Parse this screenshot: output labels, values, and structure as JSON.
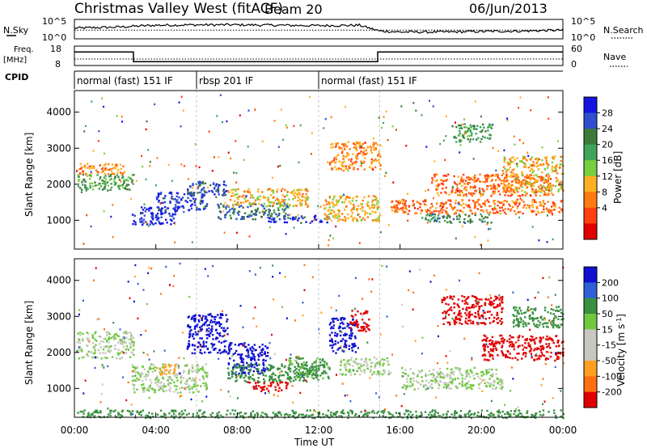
{
  "header": {
    "station": "Christmas Valley West (fitACF)",
    "beam": "Beam 20",
    "date": "06/Jun/2013"
  },
  "nsky_panel": {
    "left_label": "N.Sky",
    "right_label": "N.Search",
    "ticks_left": [
      "10^5",
      "10^0"
    ],
    "ticks_right": [
      "10^5",
      "10^0"
    ]
  },
  "freq_panel": {
    "left_label_1": "Freq.",
    "left_label_2": "[MHz]",
    "right_label": "Nave",
    "ticks_left": [
      "18",
      "8"
    ],
    "ticks_right": [
      "60",
      "0"
    ]
  },
  "cpid": {
    "label": "CPID",
    "segments": [
      {
        "name": "normal (fast) 151 IF",
        "start_h": 0,
        "end_h": 6
      },
      {
        "name": "rbsp 201 IF",
        "start_h": 6,
        "end_h": 12
      },
      {
        "name": "normal (fast) 151 IF",
        "start_h": 12,
        "end_h": 24
      }
    ]
  },
  "power_panel": {
    "ylabel": "Slant Range [km]",
    "yticks": [
      "4000",
      "3000",
      "2000",
      "1000"
    ],
    "cbar_label": "Power [dB]",
    "cbar_ticks": [
      "28",
      "24",
      "20",
      "16",
      "12",
      "8",
      "4"
    ]
  },
  "velocity_panel": {
    "ylabel": "Slant Range [km]",
    "yticks": [
      "4000",
      "3000",
      "2000",
      "1000"
    ],
    "cbar_label": "Velocity [m s",
    "cbar_label_sup": "-1",
    "cbar_label_end": "]",
    "cbar_ticks": [
      "200",
      "100",
      "50",
      "15",
      "-15",
      "-50",
      "-100",
      "-200"
    ]
  },
  "xaxis": {
    "label": "Time UT",
    "ticks": [
      "00:00",
      "04:00",
      "08:00",
      "12:00",
      "16:00",
      "20:00",
      "00:00"
    ]
  },
  "colors": {
    "power_scale": [
      "#1515e0",
      "#2f4ed0",
      "#3d7a3a",
      "#3fa35a",
      "#78d040",
      "#ffb020",
      "#ff7a10",
      "#ff4010",
      "#e00000"
    ],
    "velocity_scale": [
      "#1010d0",
      "#3060d8",
      "#3a9040",
      "#70c840",
      "#c8c8c0",
      "#c8c8c0",
      "#ffa020",
      "#ff7010",
      "#e00000"
    ]
  },
  "chart_data": [
    {
      "type": "line",
      "title": "N.Sky / N.Search",
      "x_range_h": [
        0,
        24
      ],
      "series": [
        {
          "name": "N.Sky",
          "style": "solid",
          "x": [
            0,
            2,
            4,
            6,
            8,
            10,
            12,
            14,
            15,
            16,
            18,
            20,
            22,
            24
          ],
          "level": [
            0.55,
            0.6,
            0.7,
            0.72,
            0.72,
            0.7,
            0.68,
            0.7,
            0.4,
            0.35,
            0.35,
            0.38,
            0.4,
            0.45
          ]
        },
        {
          "name": "N.Search",
          "style": "dotted",
          "x": [
            0,
            24
          ],
          "level": [
            0.45,
            0.45
          ]
        }
      ]
    },
    {
      "type": "line",
      "title": "Freq / Nave",
      "x_range_h": [
        0,
        24
      ],
      "series": [
        {
          "name": "Freq. [MHz]",
          "style": "solid",
          "x": [
            0,
            2.9,
            2.9,
            14.9,
            14.9,
            24
          ],
          "y": [
            15,
            15,
            10,
            10,
            15,
            15
          ]
        },
        {
          "name": "Nave",
          "style": "dotted",
          "x": [
            0,
            24
          ],
          "y": [
            20,
            20
          ]
        }
      ]
    },
    {
      "type": "heatmap",
      "title": "Power [dB]",
      "x_range_h": [
        0,
        24
      ],
      "ylim_km": [
        200,
        4600
      ],
      "regions": [
        {
          "x0": 0.1,
          "x1": 2.9,
          "y0": 1850,
          "y1": 2300,
          "value": 18
        },
        {
          "x0": 0.2,
          "x1": 2.6,
          "y0": 2300,
          "y1": 2600,
          "value": 8
        },
        {
          "x0": 2.8,
          "x1": 5.0,
          "y0": 900,
          "y1": 1400,
          "value": 28
        },
        {
          "x0": 4.0,
          "x1": 6.5,
          "y0": 1300,
          "y1": 1800,
          "value": 26
        },
        {
          "x0": 5.5,
          "x1": 7.5,
          "y0": 1700,
          "y1": 2100,
          "value": 24
        },
        {
          "x0": 7.0,
          "x1": 10.5,
          "y0": 1050,
          "y1": 1500,
          "value": 22
        },
        {
          "x0": 9.5,
          "x1": 12.5,
          "y0": 950,
          "y1": 1150,
          "value": 26
        },
        {
          "x0": 7.5,
          "x1": 11.5,
          "y0": 1400,
          "y1": 1900,
          "value": 10
        },
        {
          "x0": 12.2,
          "x1": 15.0,
          "y0": 1000,
          "y1": 1700,
          "value": 10
        },
        {
          "x0": 12.5,
          "x1": 15.0,
          "y0": 2400,
          "y1": 3200,
          "value": 8
        },
        {
          "x0": 17.0,
          "x1": 20.5,
          "y0": 950,
          "y1": 1200,
          "value": 20
        },
        {
          "x0": 15.5,
          "x1": 24.0,
          "y0": 1200,
          "y1": 1600,
          "value": 6
        },
        {
          "x0": 17.5,
          "x1": 23.5,
          "y0": 1700,
          "y1": 2300,
          "value": 6
        },
        {
          "x0": 18.5,
          "x1": 20.5,
          "y0": 3200,
          "y1": 3700,
          "value": 18
        },
        {
          "x0": 21.0,
          "x1": 24.0,
          "y0": 1800,
          "y1": 2800,
          "value": 10
        }
      ]
    },
    {
      "type": "heatmap",
      "title": "Velocity [m s-1]",
      "x_range_h": [
        0,
        24
      ],
      "ylim_km": [
        200,
        4600
      ],
      "regions": [
        {
          "x0": 0.1,
          "x1": 2.9,
          "y0": 1850,
          "y1": 2600,
          "value": 0
        },
        {
          "x0": 2.8,
          "x1": 6.5,
          "y0": 900,
          "y1": 1700,
          "value": 0
        },
        {
          "x0": 4.0,
          "x1": 5.0,
          "y0": 1400,
          "y1": 1700,
          "value": -60
        },
        {
          "x0": 5.5,
          "x1": 7.5,
          "y0": 2000,
          "y1": 3100,
          "value": 200
        },
        {
          "x0": 7.5,
          "x1": 9.5,
          "y0": 1400,
          "y1": 2300,
          "value": 200
        },
        {
          "x0": 7.5,
          "x1": 12.0,
          "y0": 1200,
          "y1": 1700,
          "value": 60
        },
        {
          "x0": 8.5,
          "x1": 10.5,
          "y0": 950,
          "y1": 1200,
          "value": -200
        },
        {
          "x0": 10.5,
          "x1": 12.5,
          "y0": 1300,
          "y1": 1900,
          "value": 40
        },
        {
          "x0": 12.5,
          "x1": 13.8,
          "y0": 2000,
          "y1": 3000,
          "value": 200
        },
        {
          "x0": 13.5,
          "x1": 14.5,
          "y0": 2600,
          "y1": 3200,
          "value": -200
        },
        {
          "x0": 13.0,
          "x1": 15.5,
          "y0": 1400,
          "y1": 1900,
          "value": 0
        },
        {
          "x0": 16.0,
          "x1": 21.0,
          "y0": 1000,
          "y1": 1600,
          "value": 0
        },
        {
          "x0": 18.0,
          "x1": 21.0,
          "y0": 2800,
          "y1": 3600,
          "value": -200
        },
        {
          "x0": 20.0,
          "x1": 24.0,
          "y0": 1800,
          "y1": 2500,
          "value": -200
        },
        {
          "x0": 21.5,
          "x1": 24.0,
          "y0": 2700,
          "y1": 3300,
          "value": 60
        },
        {
          "x0": 0.0,
          "x1": 24.0,
          "y0": 200,
          "y1": 420,
          "value": 60
        }
      ]
    }
  ]
}
